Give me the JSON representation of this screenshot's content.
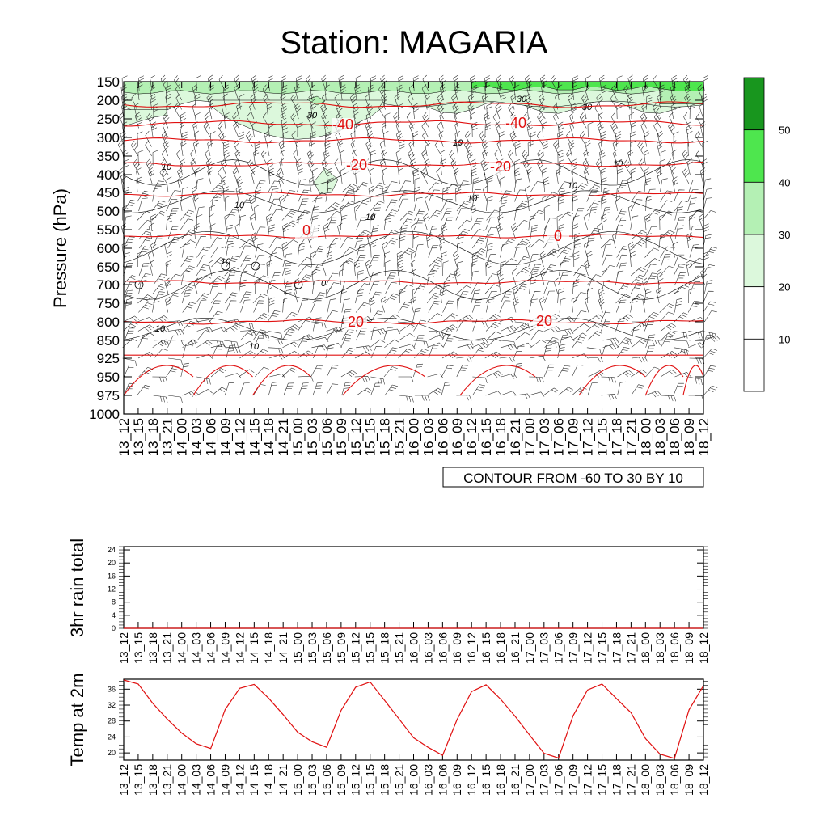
{
  "title": "Station: MAGARIA",
  "time_labels": [
    "13_12",
    "13_15",
    "13_18",
    "13_21",
    "14_00",
    "14_03",
    "14_06",
    "14_09",
    "14_12",
    "14_15",
    "14_18",
    "14_21",
    "15_00",
    "15_03",
    "15_06",
    "15_09",
    "15_12",
    "15_15",
    "15_18",
    "15_21",
    "16_00",
    "16_03",
    "16_06",
    "16_09",
    "16_12",
    "16_15",
    "16_18",
    "16_21",
    "17_00",
    "17_03",
    "17_06",
    "17_09",
    "17_12",
    "17_15",
    "17_18",
    "17_21",
    "18_00",
    "18_03",
    "18_06",
    "18_09",
    "18_12"
  ],
  "colors": {
    "temp_contour": "#e01010",
    "rh_contour": "#000000",
    "fill_20_30": "#dcf8dc",
    "fill_30_40": "#b4f0b4",
    "fill_40_50": "#4ee64e",
    "fill_50_plus": "#18961e",
    "temp_line": "#e01010"
  },
  "chart_data": [
    {
      "type": "heatmap",
      "name": "pressure-time cross section",
      "ylabel": "Pressure (hPa)",
      "y_ticks": [
        150,
        200,
        250,
        300,
        350,
        400,
        450,
        500,
        550,
        600,
        650,
        700,
        750,
        800,
        850,
        925,
        950,
        975,
        1000
      ],
      "ylim": [
        1000,
        150
      ],
      "info_label": "CONTOUR FROM -60 TO 30 BY 10",
      "temperature_contours": [
        {
          "level": -40,
          "pressure": 262,
          "label": "-40"
        },
        {
          "level": -30,
          "pressure": 308,
          "label": ""
        },
        {
          "level": -20,
          "pressure": 372,
          "label": "-20"
        },
        {
          "level": -10,
          "pressure": 455,
          "label": ""
        },
        {
          "level": 0,
          "pressure": 567,
          "label": "0"
        },
        {
          "level": 10,
          "pressure": 693,
          "label": ""
        },
        {
          "level": 20,
          "pressure": 800,
          "label": "20"
        },
        {
          "level": 30,
          "pressure": 912,
          "label": ""
        }
      ],
      "temperature_contour_extra_level": {
        "level": -50,
        "pressure": 212
      },
      "rh_contour_labels": [
        "10",
        "30",
        "30",
        "30",
        "10",
        "10",
        "10",
        "10",
        "10",
        "10",
        "10",
        "10",
        "10",
        "0"
      ],
      "colorbar": {
        "levels": [
          10,
          20,
          30,
          40,
          50
        ],
        "labels": [
          "10",
          "20",
          "30",
          "40",
          "50"
        ]
      }
    },
    {
      "type": "line",
      "name": "3hr rain total",
      "ylabel": "3hr rain total",
      "y_ticks": [
        0,
        4,
        8,
        12,
        16,
        20,
        24
      ],
      "y_tick_labels": [
        "0",
        "4",
        "8",
        "12",
        "16",
        "20",
        "24"
      ],
      "ylim": [
        0,
        25
      ],
      "values": [
        0,
        0,
        0,
        0,
        0,
        0,
        0,
        0,
        0,
        0,
        0,
        0,
        0,
        0,
        0,
        0,
        0,
        0,
        0,
        0,
        0,
        0,
        0,
        0,
        0,
        0,
        0,
        0,
        0,
        0,
        0,
        0,
        0,
        0,
        0,
        0,
        0,
        0,
        0,
        0,
        0
      ]
    },
    {
      "type": "line",
      "name": "temperature at 2m",
      "ylabel": "Temp at 2m",
      "y_ticks": [
        20,
        24,
        28,
        32,
        36
      ],
      "y_tick_labels": [
        "20",
        "24",
        "28",
        "32",
        "36"
      ],
      "ylim": [
        18.2,
        38.5
      ],
      "values": [
        38.3,
        37.3,
        32.5,
        28.5,
        25.0,
        22.3,
        21.1,
        30.9,
        36.2,
        37.2,
        33.7,
        29.6,
        25.2,
        22.8,
        21.4,
        30.7,
        36.5,
        37.8,
        33.2,
        28.5,
        23.8,
        21.4,
        19.4,
        28.4,
        35.4,
        37.1,
        33.5,
        29.2,
        24.5,
        19.9,
        18.7,
        29.3,
        35.8,
        37.3,
        33.6,
        30.1,
        23.6,
        19.7,
        18.6,
        30.8,
        36.9
      ]
    }
  ]
}
